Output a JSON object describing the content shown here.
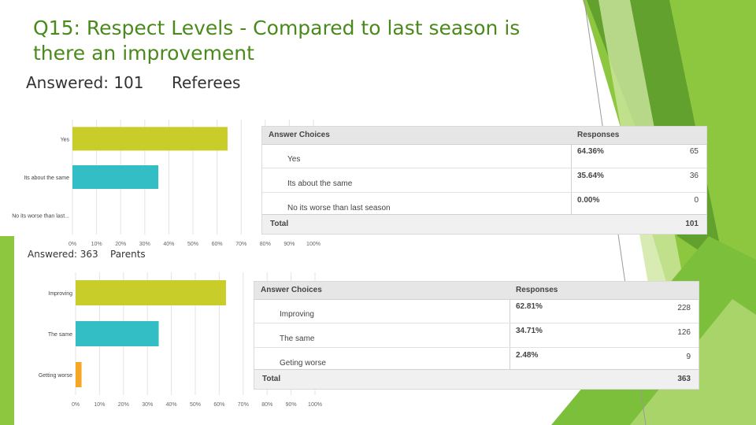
{
  "slide": {
    "title": "Q15: Respect Levels - Compared to last season is there an improvement"
  },
  "colors": {
    "title": "#4a8a1c",
    "bar_top": "#c8cd2a",
    "bar_mid": "#33bdc4",
    "bar_low": "#f5a623",
    "green_light": "#8dc63f",
    "green_dark": "#5a9a2a"
  },
  "referees": {
    "answered_label": "Answered: 101",
    "group_label": "Referees",
    "table": {
      "header_choices": "Answer Choices",
      "header_responses": "Responses",
      "rows": [
        {
          "choice": "Yes",
          "percent": "64.36%",
          "count": "65"
        },
        {
          "choice": "Its about the same",
          "percent": "35.64%",
          "count": "36"
        },
        {
          "choice": "No its worse than last season",
          "percent": "0.00%",
          "count": "0"
        }
      ],
      "total_label": "Total",
      "total_value": "101"
    }
  },
  "parents": {
    "answered_label": "Answered: 363",
    "group_label": "Parents",
    "table": {
      "header_choices": "Answer Choices",
      "header_responses": "Responses",
      "rows": [
        {
          "choice": "Improving",
          "percent": "62.81%",
          "count": "228"
        },
        {
          "choice": "The same",
          "percent": "34.71%",
          "count": "126"
        },
        {
          "choice": "Geting worse",
          "percent": "2.48%",
          "count": "9"
        }
      ],
      "total_label": "Total",
      "total_value": "363"
    }
  },
  "chart_data": [
    {
      "type": "bar",
      "orientation": "horizontal",
      "categories": [
        "Yes",
        "Its about the same",
        "No its worse than last..."
      ],
      "values": [
        64.36,
        35.64,
        0.0
      ],
      "colors": [
        "#c8cd2a",
        "#33bdc4",
        "#f5a623"
      ],
      "xlim": [
        0,
        100
      ],
      "xticks": [
        "0%",
        "10%",
        "20%",
        "30%",
        "40%",
        "50%",
        "60%",
        "70%",
        "80%",
        "90%",
        "100%"
      ],
      "grid": true
    },
    {
      "type": "bar",
      "orientation": "horizontal",
      "categories": [
        "Improving",
        "The same",
        "Getting worse"
      ],
      "values": [
        62.81,
        34.71,
        2.48
      ],
      "colors": [
        "#c8cd2a",
        "#33bdc4",
        "#f5a623"
      ],
      "xlim": [
        0,
        100
      ],
      "xticks": [
        "0%",
        "10%",
        "20%",
        "30%",
        "40%",
        "50%",
        "60%",
        "70%",
        "80%",
        "90%",
        "100%"
      ],
      "grid": true
    }
  ]
}
